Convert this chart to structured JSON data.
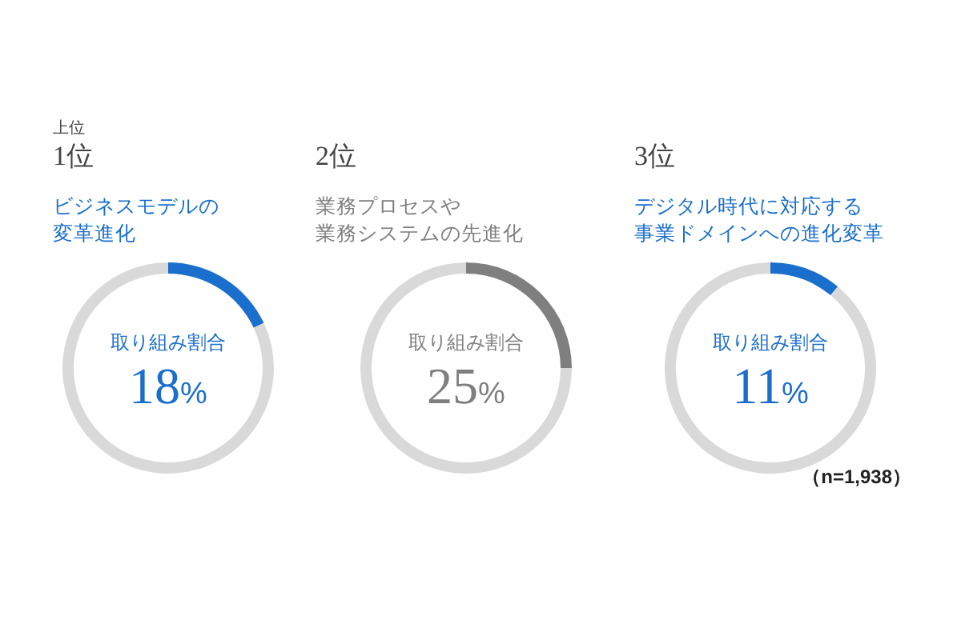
{
  "chart_data": [
    {
      "type": "donut",
      "title": "1位",
      "subtitle": "ビジネスモデルの変革進化",
      "categories": [
        "取り組み割合",
        null
      ],
      "values": [
        18,
        82
      ],
      "colors": [
        "#1a6fcc",
        "#d9d9d9"
      ],
      "value_labels": [
        "18%",
        null
      ],
      "annotations": [
        "上位"
      ]
    },
    {
      "type": "donut",
      "title": "2位",
      "subtitle": "業務プロセスや業務システムの先進化",
      "categories": [
        "取り組み割合",
        null
      ],
      "values": [
        25,
        75
      ],
      "colors": [
        "#7f7f7f",
        "#d9d9d9"
      ],
      "value_labels": [
        "25%",
        null
      ]
    },
    {
      "type": "donut",
      "title": "3位",
      "subtitle": "デジタル時代に対応する事業ドメインへの進化変革",
      "categories": [
        "取り組み割合",
        null
      ],
      "values": [
        11,
        89
      ],
      "colors": [
        "#1a6fcc",
        "#d9d9d9"
      ],
      "value_labels": [
        "11%",
        null
      ],
      "annotations": [
        "（n=1,938）"
      ]
    }
  ]
}
